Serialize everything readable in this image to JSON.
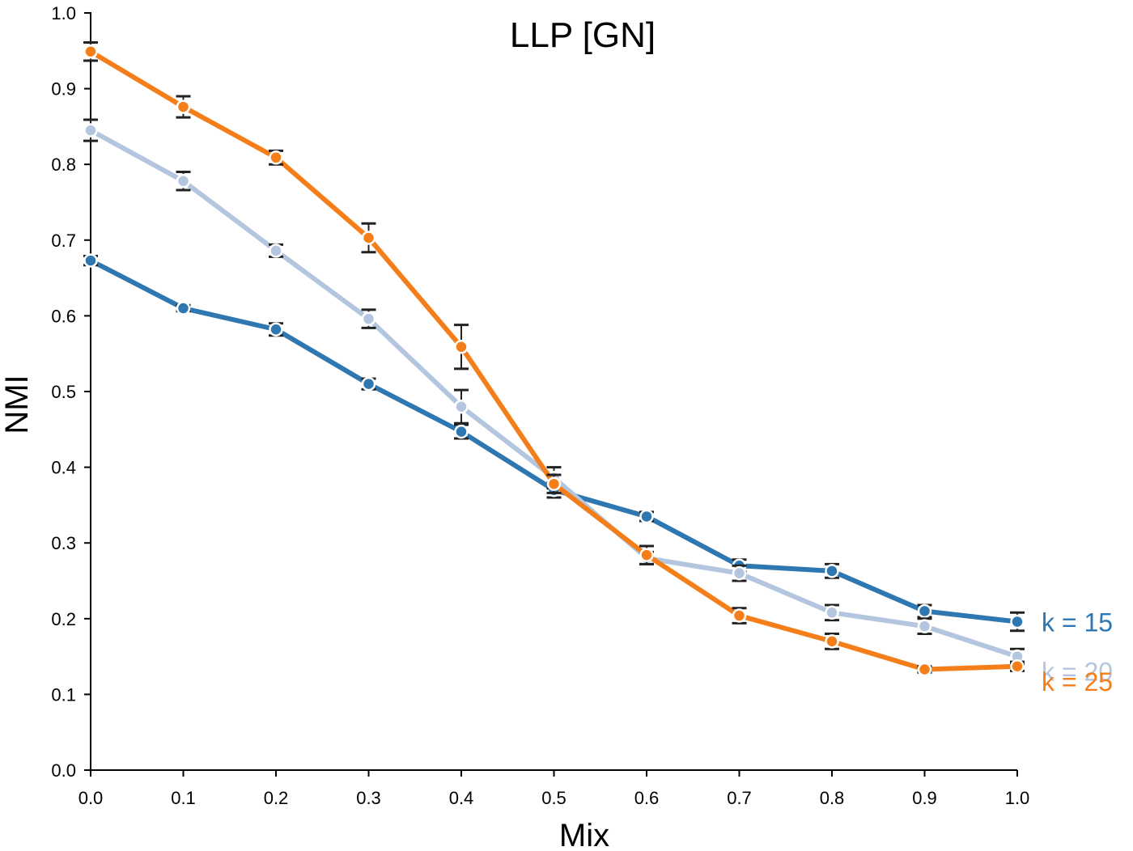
{
  "chart_data": {
    "type": "line",
    "title": "LLP [GN]",
    "xlabel": "Mix",
    "ylabel": "NMI",
    "xlim": [
      0,
      1
    ],
    "ylim": [
      0,
      1
    ],
    "x": [
      0.0,
      0.1,
      0.2,
      0.3,
      0.4,
      0.5,
      0.6,
      0.7,
      0.8,
      0.9,
      1.0
    ],
    "x_ticks": [
      "0.0",
      "0.1",
      "0.2",
      "0.3",
      "0.4",
      "0.5",
      "0.6",
      "0.7",
      "0.8",
      "0.9",
      "1.0"
    ],
    "y_ticks": [
      "0.0",
      "0.1",
      "0.2",
      "0.3",
      "0.4",
      "0.5",
      "0.6",
      "0.7",
      "0.8",
      "0.9",
      "1.0"
    ],
    "grid": false,
    "legend": "end-of-line labels on right",
    "series": [
      {
        "name": "k = 15",
        "color": "#2f77b0",
        "values": [
          0.673,
          0.61,
          0.582,
          0.51,
          0.447,
          0.37,
          0.335,
          0.27,
          0.263,
          0.21,
          0.196
        ],
        "errors": [
          0.006,
          0.004,
          0.008,
          0.007,
          0.009,
          0.01,
          0.006,
          0.008,
          0.009,
          0.008,
          0.012
        ]
      },
      {
        "name": "k = 20",
        "color": "#b4c6df",
        "values": [
          0.845,
          0.778,
          0.686,
          0.596,
          0.48,
          0.386,
          0.28,
          0.26,
          0.208,
          0.19,
          0.15
        ],
        "errors": [
          0.014,
          0.012,
          0.008,
          0.012,
          0.022,
          0.014,
          0.008,
          0.01,
          0.01,
          0.01,
          0.01
        ]
      },
      {
        "name": "k = 25",
        "color": "#f47f1a",
        "values": [
          0.949,
          0.876,
          0.809,
          0.703,
          0.559,
          0.378,
          0.284,
          0.204,
          0.17,
          0.133,
          0.137
        ],
        "errors": [
          0.012,
          0.014,
          0.009,
          0.019,
          0.029,
          0.012,
          0.012,
          0.01,
          0.01,
          0.004,
          0.006
        ]
      }
    ]
  }
}
